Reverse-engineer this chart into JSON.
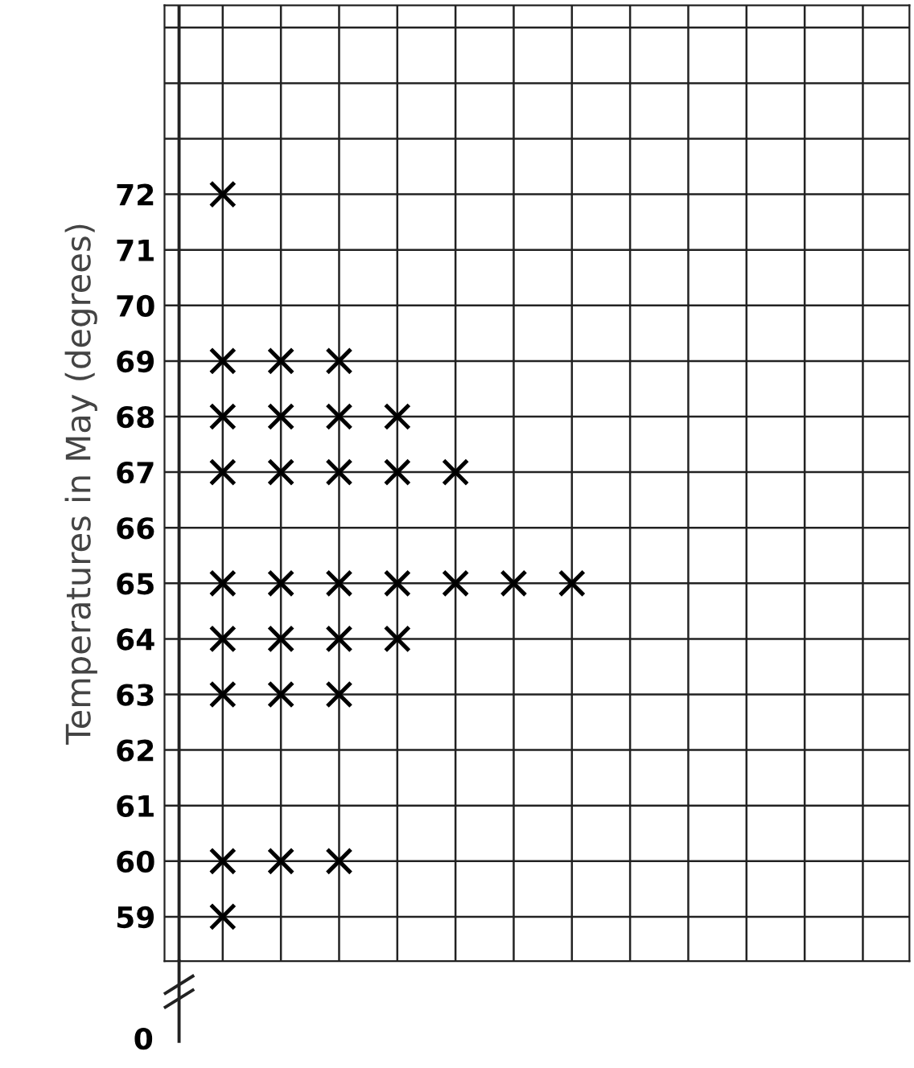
{
  "chart_data": {
    "type": "scatter",
    "ylabel": "Temperatures in May (degrees)",
    "categories": [
      null,
      null,
      null,
      null,
      null,
      null,
      null,
      null,
      null,
      null,
      null,
      null
    ],
    "series": [
      {
        "color": "#000000",
        "values": [
          72,
          null,
          null,
          null,
          null,
          null,
          null,
          null,
          null,
          null,
          null,
          null
        ]
      },
      {
        "color": "#000000",
        "values": [
          69,
          69,
          69,
          null,
          null,
          null,
          null,
          null,
          null,
          null,
          null,
          null
        ]
      },
      {
        "color": "#000000",
        "values": [
          68,
          68,
          68,
          68,
          null,
          null,
          null,
          null,
          null,
          null,
          null,
          null
        ]
      },
      {
        "color": "#000000",
        "values": [
          67,
          67,
          67,
          67,
          67,
          null,
          null,
          null,
          null,
          null,
          null,
          null
        ]
      },
      {
        "color": "#000000",
        "values": [
          65,
          65,
          65,
          65,
          65,
          65,
          65,
          null,
          null,
          null,
          null,
          null
        ]
      },
      {
        "color": "#000000",
        "values": [
          64,
          64,
          64,
          64,
          null,
          null,
          null,
          null,
          null,
          null,
          null,
          null
        ]
      },
      {
        "color": "#000000",
        "values": [
          63,
          63,
          63,
          null,
          null,
          null,
          null,
          null,
          null,
          null,
          null,
          null
        ]
      },
      {
        "color": "#000000",
        "values": [
          60,
          60,
          60,
          null,
          null,
          null,
          null,
          null,
          null,
          null,
          null,
          null
        ]
      },
      {
        "color": "#000000",
        "values": [
          59,
          null,
          null,
          null,
          null,
          null,
          null,
          null,
          null,
          null,
          null,
          null
        ]
      }
    ],
    "ylim": [
      58.2,
      75.4
    ],
    "yticks": [
      59,
      60,
      61,
      62,
      63,
      64,
      65,
      66,
      67,
      68,
      69,
      70,
      71,
      72,
      {
        "value": 73,
        "label": null
      },
      {
        "value": 74,
        "label": null
      },
      {
        "value": 75,
        "label": null
      }
    ],
    "annotations": [
      "0"
    ],
    "marker": "cross",
    "grid": true,
    "legend": false,
    "tick_labels": "y"
  }
}
